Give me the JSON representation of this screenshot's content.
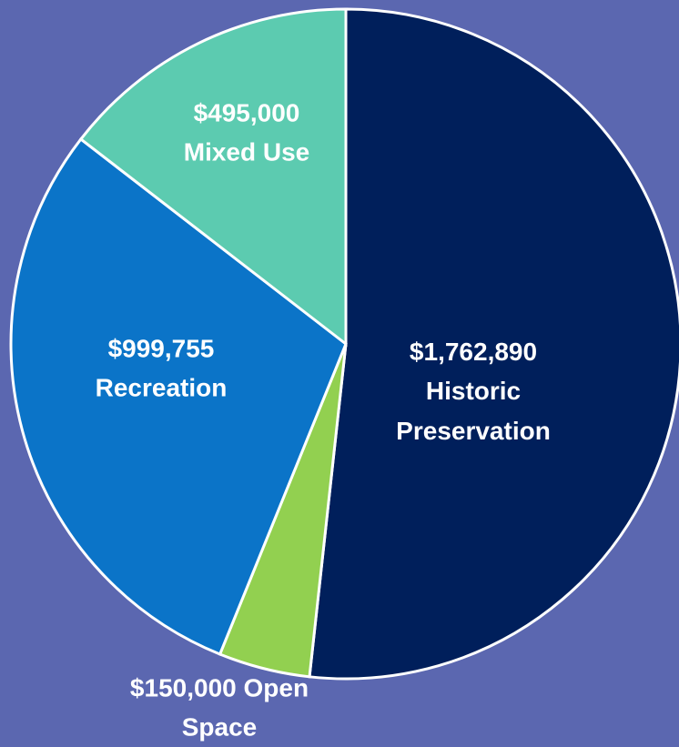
{
  "chart_data": {
    "type": "pie",
    "categories": [
      "Historic Preservation",
      "Open Space",
      "Recreation",
      "Mixed Use"
    ],
    "values": [
      1762890,
      150000,
      999755,
      495000
    ],
    "value_labels": [
      "$1,762,890",
      "$150,000",
      "$999,755",
      "$495,000"
    ],
    "colors": [
      "#001f5b",
      "#92d050",
      "#0b74c8",
      "#5ccbb0"
    ],
    "background": "#5b67b0"
  }
}
